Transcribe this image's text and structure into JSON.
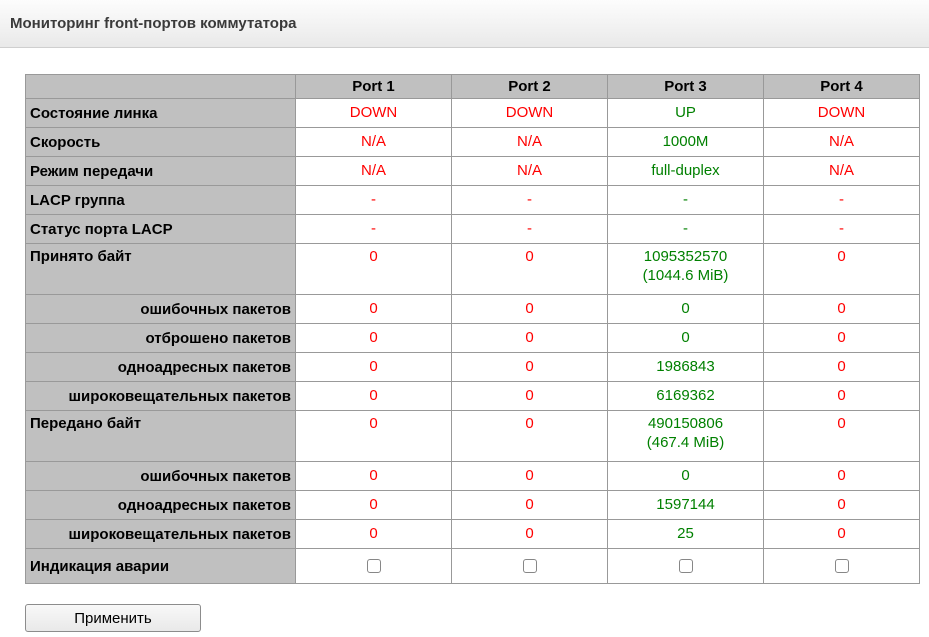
{
  "header": {
    "title": "Мониторинг front-портов коммутатора"
  },
  "colors": {
    "red": "#ff0000",
    "green": "#008000",
    "cell_gray": "#c0c0c0",
    "table_border": "#999999"
  },
  "table": {
    "corner_label": "",
    "columns": [
      "Port 1",
      "Port 2",
      "Port 3",
      "Port 4"
    ],
    "rows": [
      {
        "label": "Состояние линка",
        "label_align": "left",
        "cells": [
          {
            "text": "DOWN",
            "status": "red"
          },
          {
            "text": "DOWN",
            "status": "red"
          },
          {
            "text": "UP",
            "status": "green"
          },
          {
            "text": "DOWN",
            "status": "red"
          }
        ]
      },
      {
        "label": "Скорость",
        "label_align": "left",
        "cells": [
          {
            "text": "N/A",
            "status": "red"
          },
          {
            "text": "N/A",
            "status": "red"
          },
          {
            "text": "1000M",
            "status": "green"
          },
          {
            "text": "N/A",
            "status": "red"
          }
        ]
      },
      {
        "label": "Режим передачи",
        "label_align": "left",
        "cells": [
          {
            "text": "N/A",
            "status": "red"
          },
          {
            "text": "N/A",
            "status": "red"
          },
          {
            "text": "full-duplex",
            "status": "green"
          },
          {
            "text": "N/A",
            "status": "red"
          }
        ]
      },
      {
        "label": "LACP группа",
        "label_align": "left",
        "cells": [
          {
            "text": "-",
            "status": "red"
          },
          {
            "text": "-",
            "status": "red"
          },
          {
            "text": "-",
            "status": "green"
          },
          {
            "text": "-",
            "status": "red"
          }
        ]
      },
      {
        "label": "Статус порта LACP",
        "label_align": "left",
        "cells": [
          {
            "text": "-",
            "status": "red"
          },
          {
            "text": "-",
            "status": "red"
          },
          {
            "text": "-",
            "status": "green"
          },
          {
            "text": "-",
            "status": "red"
          }
        ]
      },
      {
        "label": "Принято байт",
        "label_align": "left",
        "tall": true,
        "cells": [
          {
            "text": "0",
            "status": "red"
          },
          {
            "text": "0",
            "status": "red"
          },
          {
            "text": "1095352570\n(1044.6 MiB)",
            "status": "green"
          },
          {
            "text": "0",
            "status": "red"
          }
        ]
      },
      {
        "label": "ошибочных пакетов",
        "label_align": "right",
        "cells": [
          {
            "text": "0",
            "status": "red"
          },
          {
            "text": "0",
            "status": "red"
          },
          {
            "text": "0",
            "status": "green"
          },
          {
            "text": "0",
            "status": "red"
          }
        ]
      },
      {
        "label": "отброшено пакетов",
        "label_align": "right",
        "cells": [
          {
            "text": "0",
            "status": "red"
          },
          {
            "text": "0",
            "status": "red"
          },
          {
            "text": "0",
            "status": "green"
          },
          {
            "text": "0",
            "status": "red"
          }
        ]
      },
      {
        "label": "одноадресных пакетов",
        "label_align": "right",
        "cells": [
          {
            "text": "0",
            "status": "red"
          },
          {
            "text": "0",
            "status": "red"
          },
          {
            "text": "1986843",
            "status": "green"
          },
          {
            "text": "0",
            "status": "red"
          }
        ]
      },
      {
        "label": "широковещательных пакетов",
        "label_align": "right",
        "cells": [
          {
            "text": "0",
            "status": "red"
          },
          {
            "text": "0",
            "status": "red"
          },
          {
            "text": "6169362",
            "status": "green"
          },
          {
            "text": "0",
            "status": "red"
          }
        ]
      },
      {
        "label": "Передано байт",
        "label_align": "left",
        "tall": true,
        "cells": [
          {
            "text": "0",
            "status": "red"
          },
          {
            "text": "0",
            "status": "red"
          },
          {
            "text": "490150806\n(467.4 MiB)",
            "status": "green"
          },
          {
            "text": "0",
            "status": "red"
          }
        ]
      },
      {
        "label": "ошибочных пакетов",
        "label_align": "right",
        "cells": [
          {
            "text": "0",
            "status": "red"
          },
          {
            "text": "0",
            "status": "red"
          },
          {
            "text": "0",
            "status": "green"
          },
          {
            "text": "0",
            "status": "red"
          }
        ]
      },
      {
        "label": "одноадресных пакетов",
        "label_align": "right",
        "cells": [
          {
            "text": "0",
            "status": "red"
          },
          {
            "text": "0",
            "status": "red"
          },
          {
            "text": "1597144",
            "status": "green"
          },
          {
            "text": "0",
            "status": "red"
          }
        ]
      },
      {
        "label": "широковещательных пакетов",
        "label_align": "right",
        "cells": [
          {
            "text": "0",
            "status": "red"
          },
          {
            "text": "0",
            "status": "red"
          },
          {
            "text": "25",
            "status": "green"
          },
          {
            "text": "0",
            "status": "red"
          }
        ]
      },
      {
        "label": "Индикация аварии",
        "label_align": "left",
        "type": "checkbox",
        "checkboxes": [
          {
            "checked": false
          },
          {
            "checked": false
          },
          {
            "checked": false
          },
          {
            "checked": false
          }
        ]
      }
    ]
  },
  "footer": {
    "apply_button": "Применить"
  }
}
